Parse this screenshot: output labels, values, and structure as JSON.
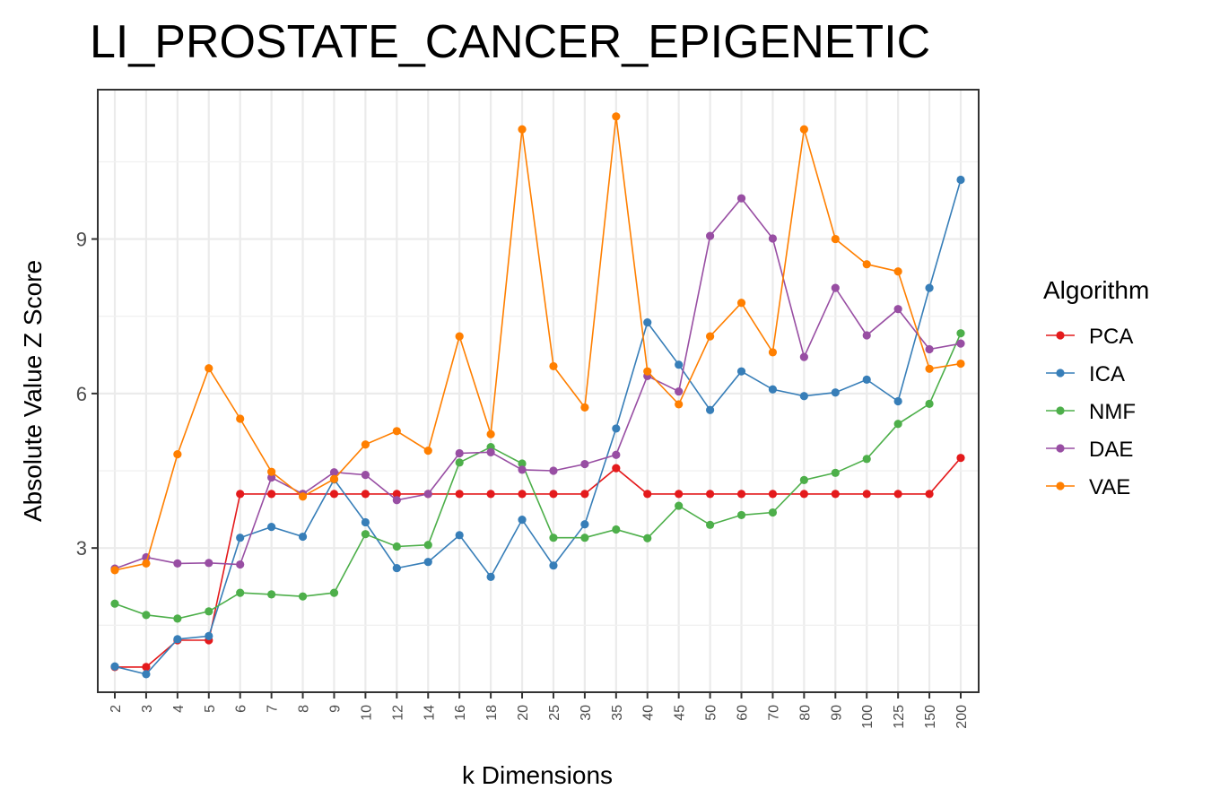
{
  "chart_data": {
    "type": "line",
    "title": "LI_PROSTATE_CANCER_EPIGENETIC",
    "xlabel": "k Dimensions",
    "ylabel": "Absolute Value Z Score",
    "categories": [
      "2",
      "3",
      "4",
      "5",
      "6",
      "7",
      "8",
      "9",
      "10",
      "12",
      "14",
      "16",
      "18",
      "20",
      "25",
      "30",
      "35",
      "40",
      "45",
      "50",
      "60",
      "70",
      "80",
      "90",
      "100",
      "125",
      "150",
      "200"
    ],
    "yticks": [
      3,
      6,
      9
    ],
    "ylim": [
      0.2,
      11.9
    ],
    "grid": true,
    "legend_title": "Algorithm",
    "legend_position": "right",
    "series": [
      {
        "name": "PCA",
        "color": "#e41a1c",
        "values": [
          0.69,
          0.69,
          1.21,
          1.21,
          4.05,
          4.05,
          4.05,
          4.05,
          4.05,
          4.05,
          4.05,
          4.05,
          4.05,
          4.05,
          4.05,
          4.05,
          4.55,
          4.05,
          4.05,
          4.05,
          4.05,
          4.05,
          4.05,
          4.05,
          4.05,
          4.05,
          4.05,
          4.75
        ]
      },
      {
        "name": "ICA",
        "color": "#377eb8",
        "values": [
          0.7,
          0.55,
          1.23,
          1.29,
          3.2,
          3.41,
          3.22,
          4.33,
          3.5,
          2.61,
          2.73,
          3.25,
          2.44,
          3.55,
          2.66,
          3.46,
          5.32,
          7.38,
          6.56,
          5.68,
          6.43,
          6.08,
          5.95,
          6.02,
          6.27,
          5.85,
          8.05,
          10.15
        ]
      },
      {
        "name": "NMF",
        "color": "#4daf4a",
        "values": [
          1.92,
          1.7,
          1.63,
          1.77,
          2.13,
          2.1,
          2.06,
          2.13,
          3.27,
          3.03,
          3.06,
          4.66,
          4.96,
          4.64,
          3.2,
          3.2,
          3.36,
          3.19,
          3.82,
          3.45,
          3.64,
          3.69,
          4.32,
          4.46,
          4.73,
          5.41,
          5.8,
          7.17
        ]
      },
      {
        "name": "DAE",
        "color": "#984ea3",
        "values": [
          2.6,
          2.82,
          2.7,
          2.71,
          2.68,
          4.37,
          4.05,
          4.47,
          4.42,
          3.93,
          4.05,
          4.84,
          4.86,
          4.52,
          4.5,
          4.63,
          4.81,
          6.34,
          6.04,
          9.06,
          9.79,
          9.01,
          6.71,
          8.05,
          7.13,
          7.64,
          6.86,
          6.97
        ]
      },
      {
        "name": "VAE",
        "color": "#ff7f00",
        "values": [
          2.57,
          2.7,
          4.82,
          6.49,
          5.51,
          4.48,
          4.0,
          4.34,
          5.01,
          5.27,
          4.89,
          7.11,
          5.21,
          11.13,
          6.53,
          5.73,
          11.38,
          6.43,
          5.79,
          7.11,
          7.76,
          6.8,
          11.13,
          9.0,
          8.51,
          8.37,
          6.48,
          6.58
        ]
      }
    ]
  }
}
